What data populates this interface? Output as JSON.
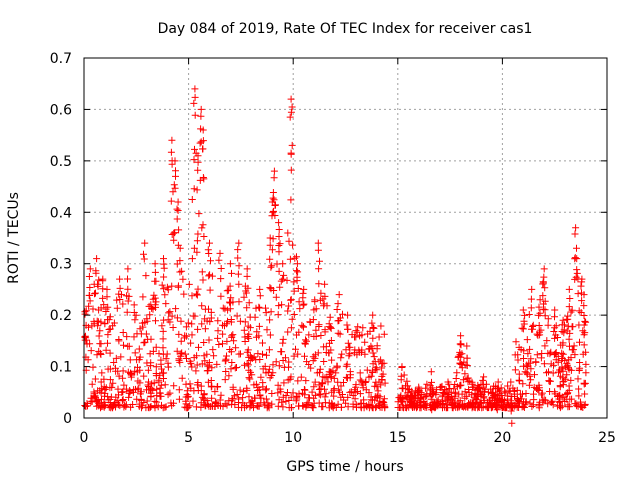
{
  "chart_data": {
    "type": "scatter",
    "title": "Day 084 of 2019, Rate Of TEC Index for receiver cas1",
    "xlabel": "GPS time / hours",
    "ylabel": "ROTI / TECUs",
    "xlim": [
      0,
      25
    ],
    "ylim": [
      0,
      0.7
    ],
    "xticks": [
      0,
      5,
      10,
      15,
      20,
      25
    ],
    "yticks": [
      0,
      0.1,
      0.2,
      0.3,
      0.4,
      0.5,
      0.6,
      0.7
    ],
    "xtick_labels": [
      "0",
      "5",
      "10",
      "15",
      "20",
      "25"
    ],
    "ytick_labels": [
      "0",
      "0.1",
      "0.2",
      "0.3",
      "0.4",
      "0.5",
      "0.6",
      "0.7"
    ],
    "grid": true,
    "marker": "+",
    "series_color": "#ff0000",
    "series": [
      {
        "name": "cas1",
        "segments": [
          {
            "x_start": 0.0,
            "x_end": 14.4,
            "baseline": 0.02,
            "typical_max": 0.18
          },
          {
            "x_start": 15.0,
            "x_end": 20.6,
            "baseline": 0.02,
            "typical_max": 0.06
          },
          {
            "x_start": 20.6,
            "x_end": 24.0,
            "baseline": 0.02,
            "typical_max": 0.15
          }
        ],
        "peaks": [
          {
            "x": 0.1,
            "y": 0.18
          },
          {
            "x": 0.3,
            "y": 0.29
          },
          {
            "x": 0.6,
            "y": 0.31
          },
          {
            "x": 0.7,
            "y": 0.21
          },
          {
            "x": 0.9,
            "y": 0.27
          },
          {
            "x": 1.1,
            "y": 0.25
          },
          {
            "x": 1.7,
            "y": 0.27
          },
          {
            "x": 2.1,
            "y": 0.29
          },
          {
            "x": 2.4,
            "y": 0.22
          },
          {
            "x": 2.9,
            "y": 0.34
          },
          {
            "x": 3.4,
            "y": 0.3
          },
          {
            "x": 3.8,
            "y": 0.31
          },
          {
            "x": 4.2,
            "y": 0.54
          },
          {
            "x": 4.35,
            "y": 0.5
          },
          {
            "x": 4.5,
            "y": 0.42
          },
          {
            "x": 4.6,
            "y": 0.33
          },
          {
            "x": 5.3,
            "y": 0.64
          },
          {
            "x": 5.45,
            "y": 0.51
          },
          {
            "x": 5.6,
            "y": 0.6
          },
          {
            "x": 5.7,
            "y": 0.56
          },
          {
            "x": 6.0,
            "y": 0.34
          },
          {
            "x": 6.5,
            "y": 0.32
          },
          {
            "x": 7.0,
            "y": 0.3
          },
          {
            "x": 7.4,
            "y": 0.34
          },
          {
            "x": 7.8,
            "y": 0.29
          },
          {
            "x": 8.4,
            "y": 0.25
          },
          {
            "x": 8.9,
            "y": 0.35
          },
          {
            "x": 9.0,
            "y": 0.42
          },
          {
            "x": 9.1,
            "y": 0.48
          },
          {
            "x": 9.3,
            "y": 0.38
          },
          {
            "x": 9.5,
            "y": 0.3
          },
          {
            "x": 9.9,
            "y": 0.62
          },
          {
            "x": 9.95,
            "y": 0.53
          },
          {
            "x": 10.2,
            "y": 0.3
          },
          {
            "x": 10.5,
            "y": 0.25
          },
          {
            "x": 11.2,
            "y": 0.34
          },
          {
            "x": 11.5,
            "y": 0.26
          },
          {
            "x": 12.2,
            "y": 0.24
          },
          {
            "x": 12.6,
            "y": 0.2
          },
          {
            "x": 13.0,
            "y": 0.17
          },
          {
            "x": 13.8,
            "y": 0.2
          },
          {
            "x": 14.1,
            "y": 0.07
          },
          {
            "x": 15.2,
            "y": 0.1
          },
          {
            "x": 16.0,
            "y": 0.06
          },
          {
            "x": 16.6,
            "y": 0.09
          },
          {
            "x": 17.4,
            "y": 0.07
          },
          {
            "x": 18.0,
            "y": 0.16
          },
          {
            "x": 18.3,
            "y": 0.14
          },
          {
            "x": 19.1,
            "y": 0.08
          },
          {
            "x": 19.8,
            "y": 0.07
          },
          {
            "x": 20.4,
            "y": 0.07
          },
          {
            "x": 21.0,
            "y": 0.21
          },
          {
            "x": 21.4,
            "y": 0.25
          },
          {
            "x": 21.8,
            "y": 0.23
          },
          {
            "x": 22.0,
            "y": 0.29
          },
          {
            "x": 22.5,
            "y": 0.21
          },
          {
            "x": 22.9,
            "y": 0.19
          },
          {
            "x": 23.2,
            "y": 0.25
          },
          {
            "x": 23.5,
            "y": 0.37
          },
          {
            "x": 23.55,
            "y": 0.31
          },
          {
            "x": 23.8,
            "y": 0.27
          },
          {
            "x": 23.9,
            "y": 0.24
          }
        ]
      }
    ]
  }
}
